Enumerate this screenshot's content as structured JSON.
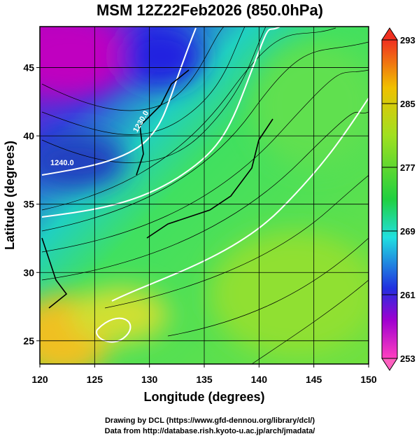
{
  "title": "MSM 12Z22Feb2026 (850.0hPa)",
  "map": {
    "xlabel": "Longitude (degrees)",
    "ylabel": "Latitude  (degrees)",
    "xlim": [
      120,
      150
    ],
    "ylim": [
      23.3,
      48
    ],
    "xticks": [
      120,
      125,
      130,
      135,
      140,
      145,
      150
    ],
    "yticks": [
      25,
      30,
      35,
      40,
      45
    ],
    "contour_labels": [
      "1230.0",
      "1240.0"
    ]
  },
  "colorbar": {
    "range": [
      253,
      293
    ],
    "ticks": [
      253,
      261,
      269,
      277,
      285,
      293
    ]
  },
  "credits": [
    "Drawing by DCL (https://www.gfd-dennou.org/library/dcl/)",
    "Data from http://database.rish.kyoto-u.ac.jp/arch/jmadata/"
  ]
}
